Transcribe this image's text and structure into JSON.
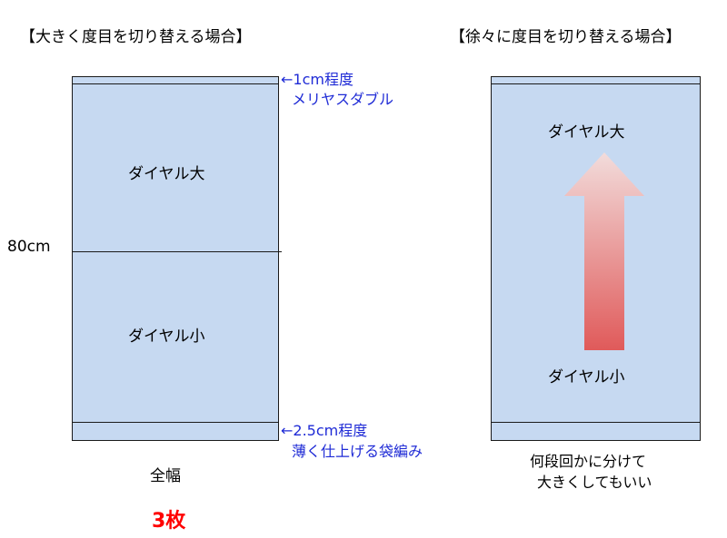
{
  "left": {
    "title": "【大きく度目を切り替える場合】",
    "top_label": "ダイヤル大",
    "bottom_label": "ダイヤル小",
    "height_label": "80cm",
    "top_note": [
      "←1cm程度",
      "メリヤスダブル"
    ],
    "bottom_note": [
      "←2.5cm程度",
      "薄く仕上げる袋編み"
    ],
    "width_label": "全幅",
    "count_label": "3枚"
  },
  "right": {
    "title": "【徐々に度目を切り替える場合】",
    "top_label": "ダイヤル大",
    "bottom_label": "ダイヤル小",
    "note": [
      "何段回かに分けて",
      "大きくしてもいい"
    ]
  },
  "colors": {
    "panel_fill": "#c6d9f1",
    "outline": "#1a1a1a",
    "note_blue": "#1f2bd6",
    "count_red": "#ff0000",
    "arrow_top": "#f2dcdb",
    "arrow_bottom": "#e05a5a"
  }
}
